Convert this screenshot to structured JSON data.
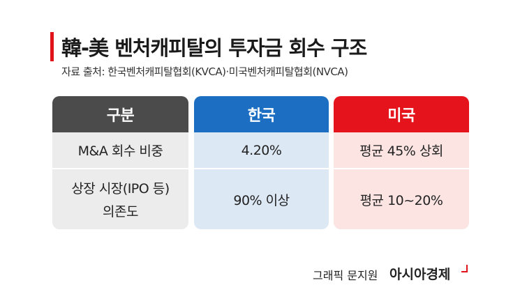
{
  "header": {
    "title": "韓-美 벤처캐피탈의 투자금 회수 구조",
    "source": "자료 출처: 한국벤처캐피탈협회(KVCA)·미국벤처캐피탈협회(NVCA)"
  },
  "table": {
    "columns": [
      "구분",
      "한국",
      "미국"
    ],
    "rows": [
      [
        "M&A 회수 비중",
        "4.20%",
        "평균 45% 상회"
      ],
      [
        [
          "상장 시장(IPO 등)",
          "의존도"
        ],
        "90% 이상",
        "평균 10~20%"
      ]
    ]
  },
  "footer": {
    "credit": "그래픽 문지원",
    "brand": "아시아경제"
  }
}
